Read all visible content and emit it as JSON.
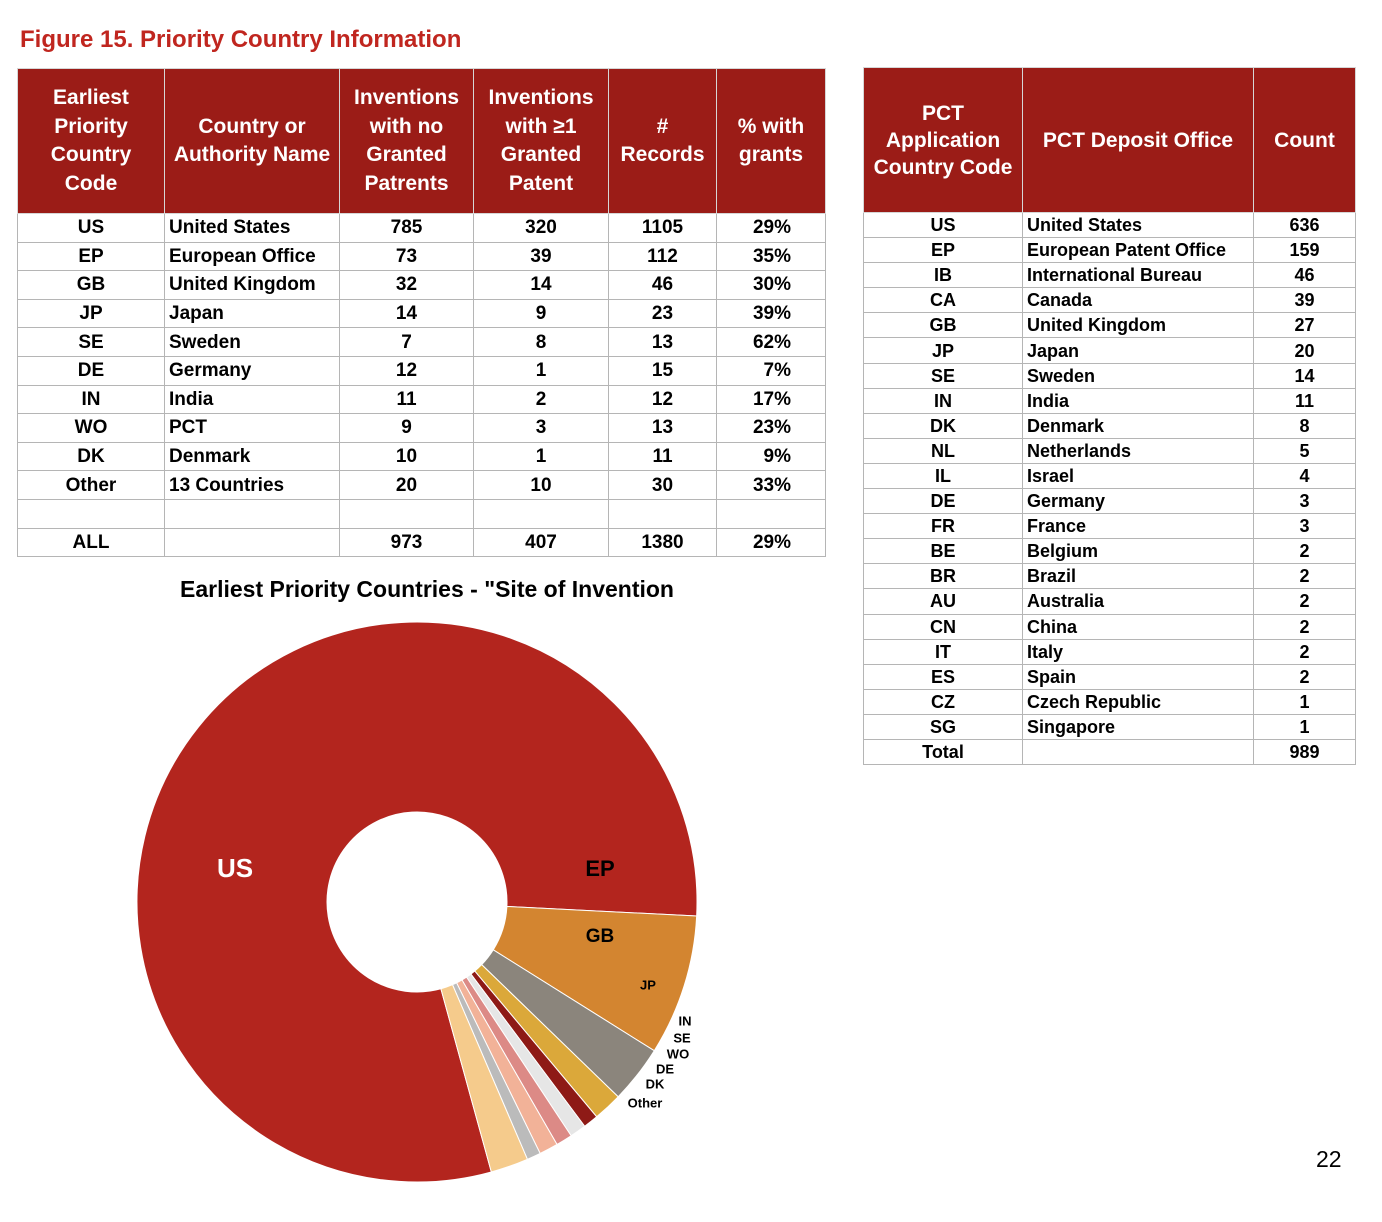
{
  "figure_title": "Figure 15. Priority Country Information",
  "priority_table": {
    "headers": [
      "Earliest Priority Country Code",
      "Country or Authority Name",
      "Inventions with no Granted Patrents",
      "Inventions with ≥1 Granted Patent",
      "# Records",
      "% with grants"
    ],
    "rows": [
      [
        "US",
        "United States",
        "785",
        "320",
        "1105",
        "29%"
      ],
      [
        "EP",
        "European Office",
        "73",
        "39",
        "112",
        "35%"
      ],
      [
        "GB",
        "United Kingdom",
        "32",
        "14",
        "46",
        "30%"
      ],
      [
        "JP",
        "Japan",
        "14",
        "9",
        "23",
        "39%"
      ],
      [
        "SE",
        "Sweden",
        "7",
        "8",
        "13",
        "62%"
      ],
      [
        "DE",
        "Germany",
        "12",
        "1",
        "15",
        "7%"
      ],
      [
        "IN",
        "India",
        "11",
        "2",
        "12",
        "17%"
      ],
      [
        "WO",
        "PCT",
        "9",
        "3",
        "13",
        "23%"
      ],
      [
        "DK",
        "Denmark",
        "10",
        "1",
        "11",
        "9%"
      ],
      [
        "Other",
        "13 Countries",
        "20",
        "10",
        "30",
        "33%"
      ]
    ],
    "total_row": [
      "ALL",
      "",
      "973",
      "407",
      "1380",
      "29%"
    ]
  },
  "pct_table": {
    "headers": [
      "PCT Application Country Code",
      "PCT Deposit Office",
      "Count"
    ],
    "rows": [
      [
        "US",
        "United States",
        "636"
      ],
      [
        "EP",
        "European Patent Office",
        "159"
      ],
      [
        "IB",
        "International Bureau",
        "46"
      ],
      [
        "CA",
        "Canada",
        "39"
      ],
      [
        "GB",
        "United Kingdom",
        "27"
      ],
      [
        "JP",
        "Japan",
        "20"
      ],
      [
        "SE",
        "Sweden",
        "14"
      ],
      [
        "IN",
        "India",
        "11"
      ],
      [
        "DK",
        "Denmark",
        "8"
      ],
      [
        "NL",
        "Netherlands",
        "5"
      ],
      [
        "IL",
        "Israel",
        "4"
      ],
      [
        "DE",
        "Germany",
        "3"
      ],
      [
        "FR",
        "France",
        "3"
      ],
      [
        "BE",
        "Belgium",
        "2"
      ],
      [
        "BR",
        "Brazil",
        "2"
      ],
      [
        "AU",
        "Australia",
        "2"
      ],
      [
        "CN",
        "China",
        "2"
      ],
      [
        "IT",
        "Italy",
        "2"
      ],
      [
        "ES",
        "Spain",
        "2"
      ],
      [
        "CZ",
        "Czech Republic",
        "1"
      ],
      [
        "SG",
        "Singapore",
        "1"
      ]
    ],
    "total_row": [
      "Total",
      "",
      "989"
    ]
  },
  "chart_data": {
    "type": "pie",
    "title": "Earliest Priority Countries - \"Site of Invention",
    "donut": true,
    "categories": [
      "US",
      "EP",
      "GB",
      "JP",
      "IN",
      "SE",
      "WO",
      "DE",
      "DK",
      "Other"
    ],
    "values": [
      1105,
      112,
      46,
      23,
      12,
      13,
      13,
      15,
      11,
      30
    ],
    "colors": [
      "#b3251e",
      "#d38530",
      "#8b857c",
      "#dba83a",
      "#8e1a16",
      "#e6e6e6",
      "#dc8a86",
      "#f2b298",
      "#bbbbbb",
      "#f5cb8c"
    ]
  },
  "page_number": "22"
}
